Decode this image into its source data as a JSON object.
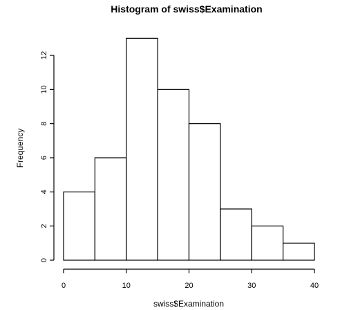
{
  "chart_data": {
    "type": "bar",
    "title": "Histogram of swiss$Examination",
    "xlabel": "swiss$Examination",
    "ylabel": "Frequency",
    "bins": [
      {
        "from": 0,
        "to": 5,
        "count": 4
      },
      {
        "from": 5,
        "to": 10,
        "count": 6
      },
      {
        "from": 10,
        "to": 15,
        "count": 13
      },
      {
        "from": 15,
        "to": 20,
        "count": 10
      },
      {
        "from": 20,
        "to": 25,
        "count": 8
      },
      {
        "from": 25,
        "to": 30,
        "count": 3
      },
      {
        "from": 30,
        "to": 35,
        "count": 2
      },
      {
        "from": 35,
        "to": 40,
        "count": 1
      }
    ],
    "xlim": [
      0,
      40
    ],
    "ylim": [
      0,
      13
    ],
    "xticks": [
      0,
      10,
      20,
      30,
      40
    ],
    "yticks": [
      0,
      2,
      4,
      6,
      8,
      10,
      12
    ],
    "grid": false,
    "colors": {
      "bar_fill": "#ffffff",
      "bar_stroke": "#000000"
    }
  }
}
